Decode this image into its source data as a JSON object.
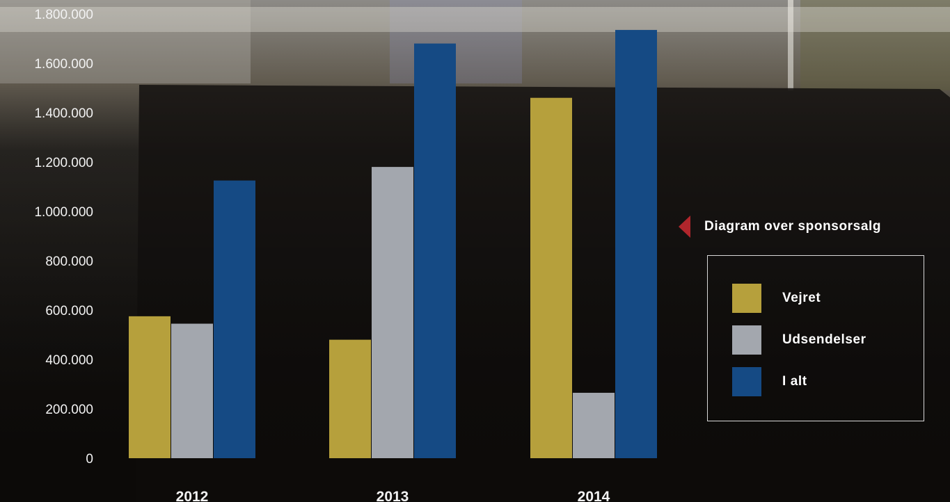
{
  "colors": {
    "vejret": "#b6a03c",
    "udsendelser": "#a3a7ae",
    "i_alt": "#154a84",
    "caption_arrow": "#b0262c"
  },
  "caption": {
    "text": "Diagram over sponsorsalg",
    "icon": "left-pointing-triangle"
  },
  "legend": [
    {
      "label": "Vejret",
      "color": "#b6a03c"
    },
    {
      "label": "Udsendelser",
      "color": "#a3a7ae"
    },
    {
      "label": "I alt",
      "color": "#154a84"
    }
  ],
  "chart_data": {
    "type": "bar",
    "title": "",
    "xlabel": "",
    "ylabel": "",
    "categories": [
      "2012",
      "2013",
      "2014"
    ],
    "series": [
      {
        "name": "Vejret",
        "color": "#b6a03c",
        "values": [
          575000,
          480000,
          1460000
        ]
      },
      {
        "name": "Udsendelser",
        "color": "#a3a7ae",
        "values": [
          545000,
          1180000,
          265000
        ]
      },
      {
        "name": "I alt",
        "color": "#154a84",
        "values": [
          1125000,
          1680000,
          1735000
        ]
      }
    ],
    "ylim": [
      0,
      1800000
    ],
    "yticks": [
      0,
      200000,
      400000,
      600000,
      800000,
      1000000,
      1200000,
      1400000,
      1600000,
      1800000
    ],
    "ytick_labels": [
      "0",
      "200.000",
      "400.000",
      "600.000",
      "800.000",
      "1.000.000",
      "1.200.000",
      "1.400.000",
      "1.600.000",
      "1.800.000"
    ],
    "grid": false,
    "legend_position": "right"
  }
}
